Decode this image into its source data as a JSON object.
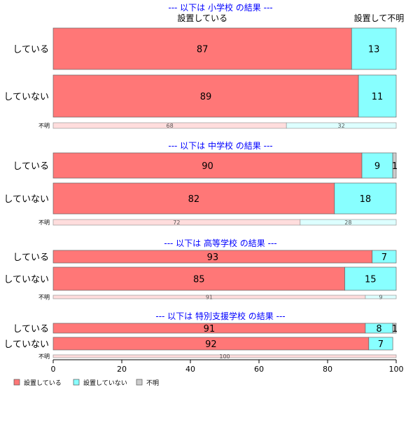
{
  "chart_data": {
    "type": "bar",
    "orientation": "horizontal",
    "stacked": true,
    "percent": true,
    "xlim": [
      0,
      100
    ],
    "xticks": [
      "0",
      "20",
      "40",
      "60",
      "80",
      "100"
    ],
    "colors": {
      "yes": "#ff7777",
      "no": "#88ffff",
      "unknown": "#cccccc",
      "title": "#0000ff"
    },
    "legend": {
      "placement": "bottom-left",
      "items": [
        {
          "label": "設置している",
          "color": "#ff7777"
        },
        {
          "label": "設置していない",
          "color": "#88ffff"
        },
        {
          "label": "不明",
          "color": "#cccccc"
        }
      ]
    },
    "top_column_labels": [
      {
        "label": "設置している",
        "x": 43.5
      },
      {
        "label": "設置して不明",
        "x": 95
      }
    ],
    "panels": [
      {
        "title": "--- 以下は 小学校 の結果 ---",
        "rows": [
          {
            "label": "している",
            "values": [
              87,
              13,
              0
            ]
          },
          {
            "label": "していない",
            "values": [
              89,
              11,
              0
            ]
          },
          {
            "label": "不明",
            "values": [
              68,
              32,
              0
            ]
          }
        ]
      },
      {
        "title": "--- 以下は 中学校 の結果 ---",
        "rows": [
          {
            "label": "している",
            "values": [
              90,
              9,
              1
            ]
          },
          {
            "label": "していない",
            "values": [
              82,
              18,
              0
            ]
          },
          {
            "label": "不明",
            "values": [
              72,
              28,
              0
            ]
          }
        ]
      },
      {
        "title": "--- 以下は 高等学校 の結果 ---",
        "rows": [
          {
            "label": "している",
            "values": [
              93,
              7,
              0
            ]
          },
          {
            "label": "していない",
            "values": [
              85,
              15,
              0
            ]
          },
          {
            "label": "不明",
            "values": [
              91,
              9,
              0
            ]
          }
        ]
      },
      {
        "title": "--- 以下は 特別支援学校 の結果 ---",
        "rows": [
          {
            "label": "している",
            "values": [
              91,
              8,
              1
            ]
          },
          {
            "label": "していない",
            "values": [
              92,
              7,
              0
            ]
          },
          {
            "label": "不明",
            "values": [
              100,
              0,
              0
            ]
          }
        ]
      }
    ]
  }
}
